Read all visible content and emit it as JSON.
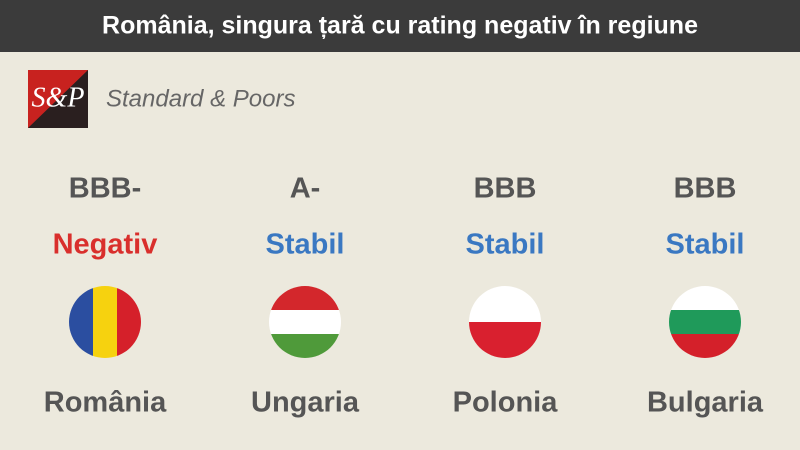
{
  "header": {
    "title": "România, singura țară cu rating negativ în regiune"
  },
  "source": {
    "logo": "S&P",
    "name": "Standard & Poors"
  },
  "countries": [
    {
      "rating": "BBB-",
      "outlook": "Negativ",
      "name": "România"
    },
    {
      "rating": "A-",
      "outlook": "Stabil",
      "name": "Ungaria"
    },
    {
      "rating": "BBB",
      "outlook": "Stabil",
      "name": "Polonia"
    },
    {
      "rating": "BBB",
      "outlook": "Stabil",
      "name": "Bulgaria"
    }
  ]
}
